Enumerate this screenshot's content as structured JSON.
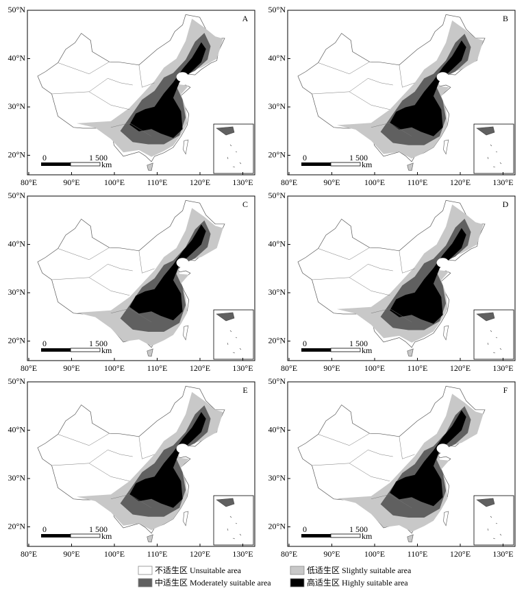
{
  "panels": [
    {
      "label": "A"
    },
    {
      "label": "B"
    },
    {
      "label": "C"
    },
    {
      "label": "D"
    },
    {
      "label": "E"
    },
    {
      "label": "F"
    }
  ],
  "x_ticks": [
    "80°E",
    "90°E",
    "100°E",
    "110°E",
    "120°E",
    "130°E"
  ],
  "y_ticks": [
    "50°N",
    "40°N",
    "30°N",
    "20°N"
  ],
  "scale_bar": {
    "start": "0",
    "end": "1 500",
    "unit": "km"
  },
  "legend": [
    {
      "label": "不适生区 Unsuitable area",
      "color": "#ffffff"
    },
    {
      "label": "低适生区 Slightly suitable area",
      "color": "#c8c8c8"
    },
    {
      "label": "中适生区 Moderately suitable area",
      "color": "#606060"
    },
    {
      "label": "高适生区 Highly suitable area",
      "color": "#000000"
    }
  ]
}
